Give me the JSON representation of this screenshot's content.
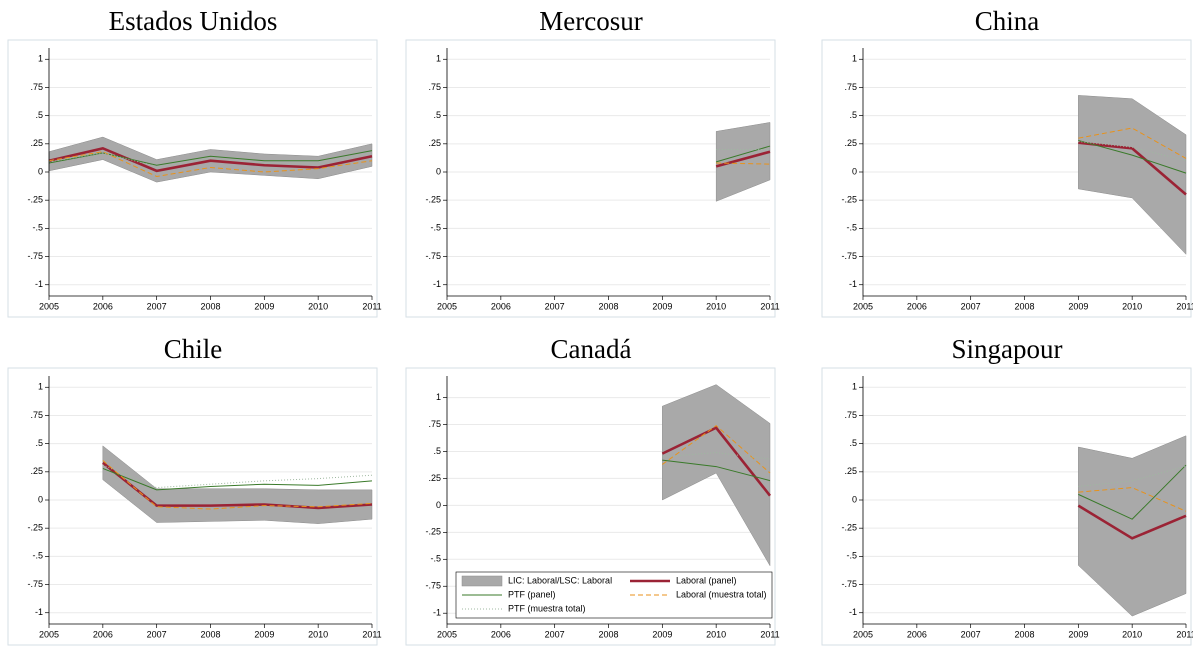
{
  "chart_data": [
    {
      "type": "line",
      "title": "Estados Unidos",
      "x": [
        2005,
        2006,
        2007,
        2008,
        2009,
        2010,
        2011
      ],
      "xlim": [
        2005,
        2011
      ],
      "ylim": [
        -1.1,
        1.1
      ],
      "yticks": [
        -1,
        {
          "value": -0.75,
          "label": "-.75"
        },
        {
          "value": -0.5,
          "label": "-.5"
        },
        {
          "value": -0.25,
          "label": "-.25"
        },
        0,
        {
          "value": 0.25,
          "label": ".25"
        },
        {
          "value": 0.5,
          "label": ".5"
        },
        {
          "value": 0.75,
          "label": ".75"
        },
        1
      ],
      "grid": true,
      "series": [
        {
          "color": "#a9a9a9",
          "style": "band",
          "low": [
            0.01,
            0.11,
            -0.09,
            0,
            -0.03,
            -0.06,
            0.05
          ],
          "high": [
            0.18,
            0.31,
            0.11,
            0.2,
            0.16,
            0.14,
            0.25
          ]
        },
        {
          "color": "#9b2335",
          "style": "thick",
          "values": [
            0.1,
            0.21,
            0.01,
            0.1,
            0.06,
            0.04,
            0.14
          ]
        },
        {
          "color": "#3a7a2a",
          "style": "solid",
          "values": [
            0.08,
            0.17,
            0.06,
            0.14,
            0.1,
            0.1,
            0.19
          ]
        },
        {
          "color": "#e8921b",
          "style": "dashed",
          "values": [
            0.1,
            0.18,
            -0.04,
            0.04,
            0,
            0.03,
            0.1
          ]
        },
        {
          "color": "#9fb8a0",
          "style": "dotted",
          "values": [
            0.09,
            0.17,
            0.05,
            0.12,
            0.08,
            0.08,
            0.17
          ]
        }
      ]
    },
    {
      "type": "line",
      "title": "Mercosur",
      "x": [
        2005,
        2006,
        2007,
        2008,
        2009,
        2010,
        2011
      ],
      "xlim": [
        2005,
        2011
      ],
      "ylim": [
        -1.1,
        1.1
      ],
      "yticks": [
        -1,
        {
          "value": -0.75,
          "label": "-.75"
        },
        {
          "value": -0.5,
          "label": "-.5"
        },
        {
          "value": -0.25,
          "label": "-.25"
        },
        0,
        {
          "value": 0.25,
          "label": ".25"
        },
        {
          "value": 0.5,
          "label": ".5"
        },
        {
          "value": 0.75,
          "label": ".75"
        },
        1
      ],
      "grid": true,
      "series": [
        {
          "color": "#a9a9a9",
          "style": "band",
          "low": [
            null,
            null,
            null,
            null,
            null,
            -0.26,
            -0.07
          ],
          "high": [
            null,
            null,
            null,
            null,
            null,
            0.36,
            0.44
          ]
        },
        {
          "color": "#9b2335",
          "style": "thick",
          "values": [
            null,
            null,
            null,
            null,
            null,
            0.05,
            0.18
          ]
        },
        {
          "color": "#3a7a2a",
          "style": "solid",
          "values": [
            null,
            null,
            null,
            null,
            null,
            0.09,
            0.23
          ]
        },
        {
          "color": "#e8921b",
          "style": "dashed",
          "values": [
            null,
            null,
            null,
            null,
            null,
            0.08,
            0.07
          ]
        },
        {
          "color": "#9fb8a0",
          "style": "dotted",
          "values": [
            null,
            null,
            null,
            null,
            null,
            0.2,
            0.2
          ]
        }
      ]
    },
    {
      "type": "line",
      "title": "China",
      "x": [
        2005,
        2006,
        2007,
        2008,
        2009,
        2010,
        2011
      ],
      "xlim": [
        2005,
        2011
      ],
      "ylim": [
        -1.1,
        1.1
      ],
      "yticks": [
        -1,
        {
          "value": -0.75,
          "label": "-.75"
        },
        {
          "value": -0.5,
          "label": "-.5"
        },
        {
          "value": -0.25,
          "label": "-.25"
        },
        0,
        {
          "value": 0.25,
          "label": ".25"
        },
        {
          "value": 0.5,
          "label": ".5"
        },
        {
          "value": 0.75,
          "label": ".75"
        },
        1
      ],
      "grid": true,
      "series": [
        {
          "color": "#a9a9a9",
          "style": "band",
          "low": [
            null,
            null,
            null,
            null,
            -0.15,
            -0.23,
            -0.73
          ],
          "high": [
            null,
            null,
            null,
            null,
            0.68,
            0.65,
            0.33
          ]
        },
        {
          "color": "#9b2335",
          "style": "thick",
          "values": [
            null,
            null,
            null,
            null,
            0.26,
            0.21,
            -0.2
          ]
        },
        {
          "color": "#3a7a2a",
          "style": "solid",
          "values": [
            null,
            null,
            null,
            null,
            0.28,
            0.15,
            -0.01
          ]
        },
        {
          "color": "#e8921b",
          "style": "dashed",
          "values": [
            null,
            null,
            null,
            null,
            0.3,
            0.39,
            0.12
          ]
        },
        {
          "color": "#9fb8a0",
          "style": "dotted",
          "values": [
            null,
            null,
            null,
            null,
            0.27,
            0.22,
            0.1
          ]
        }
      ]
    },
    {
      "type": "line",
      "title": "Chile",
      "x": [
        2005,
        2006,
        2007,
        2008,
        2009,
        2010,
        2011
      ],
      "xlim": [
        2005,
        2011
      ],
      "ylim": [
        -1.1,
        1.1
      ],
      "yticks": [
        -1,
        {
          "value": -0.75,
          "label": "-.75"
        },
        {
          "value": -0.5,
          "label": "-.5"
        },
        {
          "value": -0.25,
          "label": "-.25"
        },
        0,
        {
          "value": 0.25,
          "label": ".25"
        },
        {
          "value": 0.5,
          "label": ".5"
        },
        {
          "value": 0.75,
          "label": ".75"
        },
        1
      ],
      "grid": true,
      "series": [
        {
          "color": "#a9a9a9",
          "style": "band",
          "low": [
            null,
            0.18,
            -0.2,
            -0.19,
            -0.18,
            -0.21,
            -0.17
          ],
          "high": [
            null,
            0.48,
            0.1,
            0.1,
            0.1,
            0.09,
            0.09
          ]
        },
        {
          "color": "#9b2335",
          "style": "thick",
          "values": [
            null,
            0.33,
            -0.05,
            -0.05,
            -0.04,
            -0.07,
            -0.04
          ]
        },
        {
          "color": "#3a7a2a",
          "style": "solid",
          "values": [
            null,
            0.28,
            0.09,
            0.12,
            0.14,
            0.13,
            0.17
          ]
        },
        {
          "color": "#e8921b",
          "style": "dashed",
          "values": [
            null,
            0.35,
            -0.06,
            -0.08,
            -0.05,
            -0.06,
            -0.03
          ]
        },
        {
          "color": "#9fb8a0",
          "style": "dotted",
          "values": [
            null,
            0.31,
            0.11,
            0.14,
            0.17,
            0.19,
            0.22
          ]
        }
      ]
    },
    {
      "type": "line",
      "title": "Canadá",
      "x": [
        2005,
        2006,
        2007,
        2008,
        2009,
        2010,
        2011
      ],
      "xlim": [
        2005,
        2011
      ],
      "ylim": [
        -1.1,
        1.2
      ],
      "yticks": [
        -1,
        {
          "value": -0.75,
          "label": "-.75"
        },
        {
          "value": -0.5,
          "label": "-.5"
        },
        {
          "value": -0.25,
          "label": "-.25"
        },
        0,
        {
          "value": 0.25,
          "label": ".25"
        },
        {
          "value": 0.5,
          "label": ".5"
        },
        {
          "value": 0.75,
          "label": ".75"
        },
        1
      ],
      "grid": true,
      "legend": "lower left",
      "series": [
        {
          "name": "LIC: Laboral/LSC: Laboral",
          "color": "#a9a9a9",
          "style": "band",
          "low": [
            null,
            null,
            null,
            null,
            0.05,
            0.3,
            -0.56
          ],
          "high": [
            null,
            null,
            null,
            null,
            0.92,
            1.12,
            0.76
          ]
        },
        {
          "name": "Laboral (panel)",
          "color": "#9b2335",
          "style": "thick",
          "values": [
            null,
            null,
            null,
            null,
            0.48,
            0.72,
            0.09
          ]
        },
        {
          "name": "PTF (panel)",
          "color": "#3a7a2a",
          "style": "solid",
          "values": [
            null,
            null,
            null,
            null,
            0.42,
            0.36,
            0.23
          ]
        },
        {
          "name": "Laboral (muestra total)",
          "color": "#e8921b",
          "style": "dashed",
          "values": [
            null,
            null,
            null,
            null,
            0.38,
            0.74,
            0.3
          ]
        },
        {
          "name": "PTF (muestra total)",
          "color": "#9fb8a0",
          "style": "dotted",
          "values": [
            null,
            null,
            null,
            null,
            0.45,
            0.49,
            0.43
          ]
        }
      ]
    },
    {
      "type": "line",
      "title": "Singapour",
      "x": [
        2005,
        2006,
        2007,
        2008,
        2009,
        2010,
        2011
      ],
      "xlim": [
        2005,
        2011
      ],
      "ylim": [
        -1.1,
        1.1
      ],
      "yticks": [
        -1,
        {
          "value": -0.75,
          "label": "-.75"
        },
        {
          "value": -0.5,
          "label": "-.5"
        },
        {
          "value": -0.25,
          "label": "-.25"
        },
        0,
        {
          "value": 0.25,
          "label": ".25"
        },
        {
          "value": 0.5,
          "label": ".5"
        },
        {
          "value": 0.75,
          "label": ".75"
        },
        1
      ],
      "grid": true,
      "series": [
        {
          "color": "#a9a9a9",
          "style": "band",
          "low": [
            null,
            null,
            null,
            null,
            -0.58,
            -1.03,
            -0.83
          ],
          "high": [
            null,
            null,
            null,
            null,
            0.47,
            0.37,
            0.57
          ]
        },
        {
          "color": "#9b2335",
          "style": "thick",
          "values": [
            null,
            null,
            null,
            null,
            -0.05,
            -0.34,
            -0.14
          ]
        },
        {
          "color": "#3a7a2a",
          "style": "solid",
          "values": [
            null,
            null,
            null,
            null,
            0.05,
            -0.17,
            0.31
          ]
        },
        {
          "color": "#e8921b",
          "style": "dashed",
          "values": [
            null,
            null,
            null,
            null,
            0.07,
            0.11,
            -0.1
          ]
        },
        {
          "color": "#9fb8a0",
          "style": "dotted",
          "values": [
            null,
            null,
            null,
            null,
            0.12,
            0.17,
            0.3
          ]
        }
      ]
    }
  ]
}
